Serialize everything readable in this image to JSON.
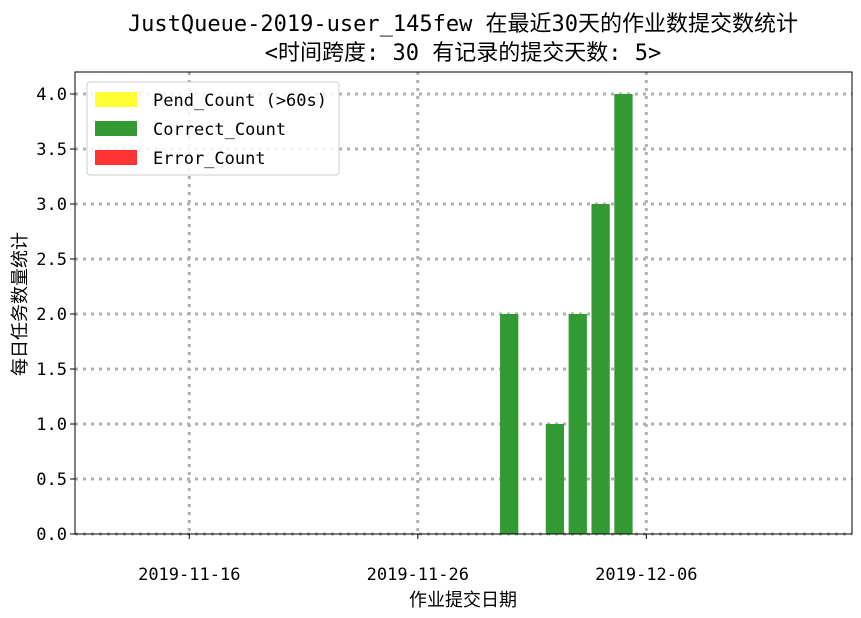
{
  "chart_data": {
    "type": "bar",
    "title": "JustQueue-2019-user_145few 在最近30天的作业数提交数统计",
    "subtitle": "<时间跨度: 30  有记录的提交天数: 5>",
    "xlabel": "作业提交日期",
    "ylabel": "每日任务数量统计",
    "x_ticks": [
      "2019-11-16",
      "2019-11-26",
      "2019-12-06"
    ],
    "y_ticks": [
      "0.0",
      "0.5",
      "1.0",
      "1.5",
      "2.0",
      "2.5",
      "3.0",
      "3.5",
      "4.0"
    ],
    "ylim": [
      0,
      4.2
    ],
    "xlim": [
      "2019-11-11",
      "2019-12-15"
    ],
    "grid": true,
    "legend_position": "top-left",
    "x": [
      "2019-11-30",
      "2019-12-02",
      "2019-12-03",
      "2019-12-04",
      "2019-12-05"
    ],
    "series": [
      {
        "name": "Pend_Count (>60s)",
        "color": "#ffff33",
        "values": [
          0,
          0,
          0,
          0,
          0
        ]
      },
      {
        "name": "Correct_Count",
        "color": "#339933",
        "values": [
          2,
          1,
          2,
          3,
          4
        ]
      },
      {
        "name": "Error_Count",
        "color": "#ff3333",
        "values": [
          0,
          0,
          0,
          0,
          0
        ]
      }
    ]
  }
}
